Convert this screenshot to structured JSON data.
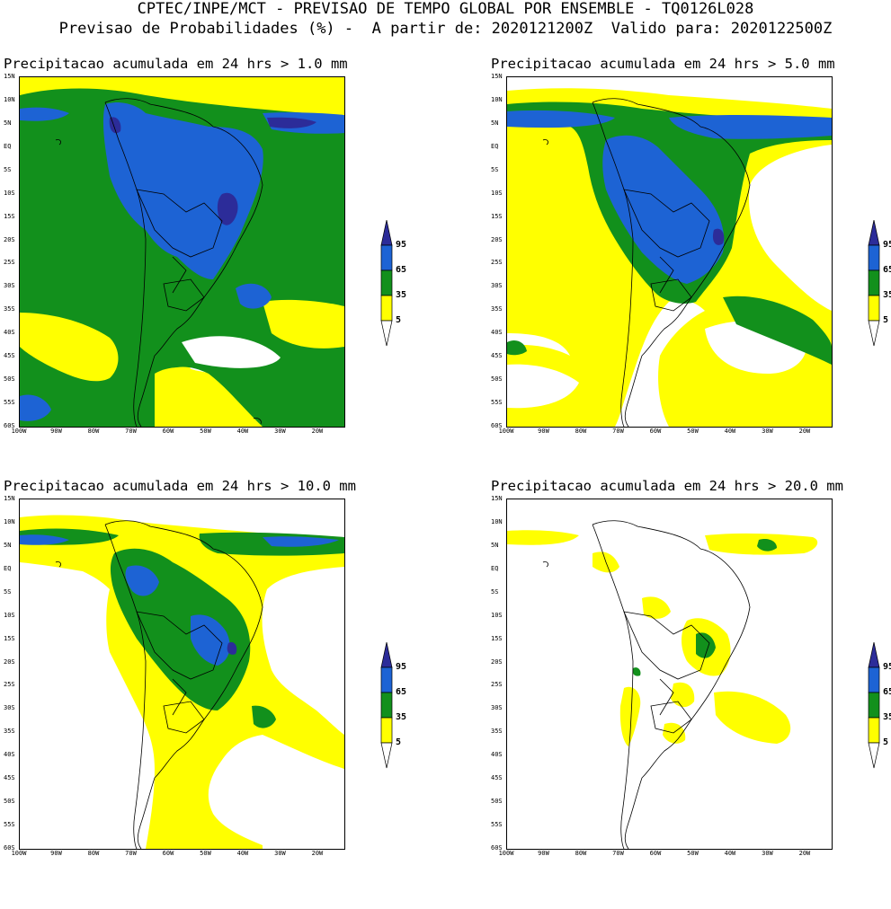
{
  "header": {
    "line1": "CPTEC/INPE/MCT - PREVISAO DE TEMPO GLOBAL POR ENSEMBLE - TQ0126L028",
    "line2": "Previsao de Probabilidades (%) -  A partir de: 2020121200Z  Valido para: 2020122500Z"
  },
  "colors": {
    "low": "#ffff00",
    "mid": "#12901c",
    "high": "#1d63d4",
    "top": "#2c2c99",
    "background": "#ffffff",
    "coast": "#000000"
  },
  "panels": [
    {
      "title": "Precipitacao acumulada em 24 hrs > 1.0 mm",
      "threshold_mm": 1.0
    },
    {
      "title": "Precipitacao acumulada em 24 hrs > 5.0 mm",
      "threshold_mm": 5.0
    },
    {
      "title": "Precipitacao acumulada em 24 hrs > 10.0 mm",
      "threshold_mm": 10.0
    },
    {
      "title": "Precipitacao acumulada em 24 hrs > 20.0 mm",
      "threshold_mm": 20.0
    }
  ],
  "axes": {
    "lat_labels": [
      "15N",
      "10N",
      "5N",
      "EQ",
      "5S",
      "10S",
      "15S",
      "20S",
      "25S",
      "30S",
      "35S",
      "40S",
      "45S",
      "50S",
      "55S",
      "60S"
    ],
    "lon_labels": [
      "100W",
      "90W",
      "80W",
      "70W",
      "60W",
      "50W",
      "40W",
      "30W",
      "20W"
    ],
    "lat_range": [
      15,
      -60
    ],
    "lon_range": [
      -100,
      -13
    ]
  },
  "legend": {
    "labels": [
      "95",
      "65",
      "35",
      "5"
    ],
    "bins": [
      "5-35",
      "35-65",
      "65-95",
      ">95"
    ]
  }
}
